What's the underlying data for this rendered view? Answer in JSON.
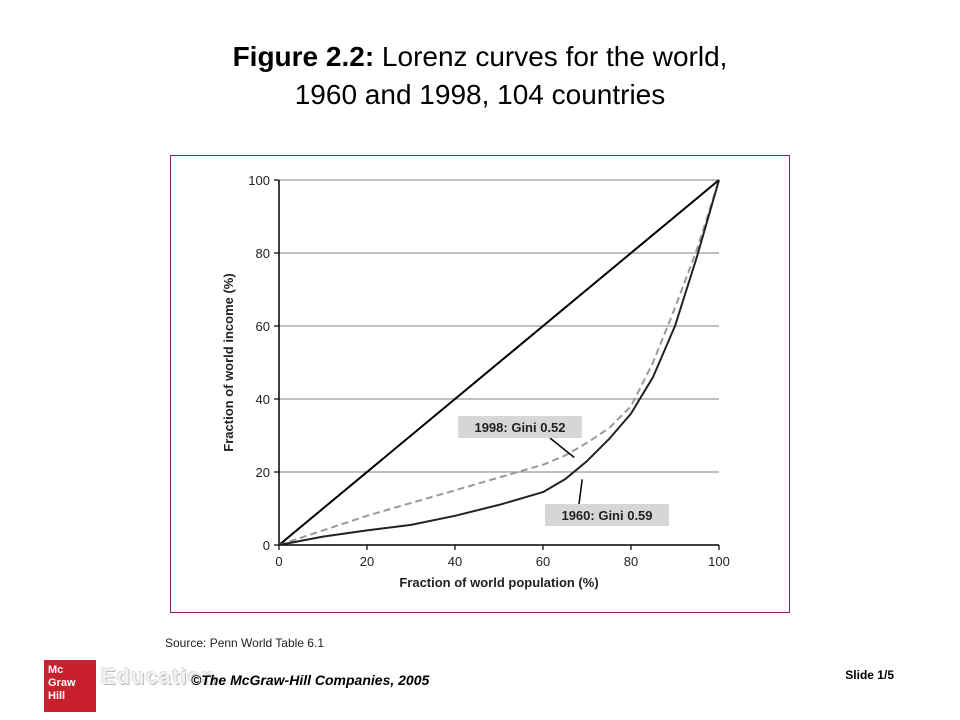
{
  "slide": {
    "title_bold": "Figure 2.2:",
    "title_rest": " Lorenz curves for the world,",
    "title_line2": "1960 and 1998, 104 countries",
    "source": "Source: Penn World Table 6.1",
    "copyright": "©The McGraw-Hill Companies, 2005",
    "slide_number": "Slide 1/5",
    "logo_text": [
      "Mc",
      "Graw",
      "Hill"
    ],
    "logo_word": "Education"
  },
  "colors": {
    "frame_border": "#8a1f5a",
    "line_equality": "#000000",
    "line_1960": "#222222",
    "line_1998": "#9a9a9a",
    "grid": "#9a9a9a",
    "label_bg": "#d6d6d6",
    "logo_red": "#c8202c"
  },
  "chart_data": {
    "type": "line",
    "xlabel": "Fraction of world population (%)",
    "ylabel": "Fraction of world income (%)",
    "xlim": [
      0,
      100
    ],
    "ylim": [
      0,
      100
    ],
    "xticks": [
      0,
      20,
      40,
      60,
      80,
      100
    ],
    "yticks": [
      0,
      20,
      40,
      60,
      80,
      100
    ],
    "grid": "horizontal",
    "series": [
      {
        "style": "solid",
        "x": [
          0,
          100
        ],
        "y": [
          0,
          100
        ]
      },
      {
        "name": "1998: Gini 0.52",
        "style": "dashed",
        "x": [
          0,
          10,
          20,
          30,
          40,
          50,
          60,
          65,
          70,
          75,
          80,
          85,
          90,
          95,
          100
        ],
        "y": [
          0,
          4,
          8,
          11.5,
          15,
          18.5,
          22,
          24.5,
          28,
          32,
          38,
          50,
          65,
          81,
          100
        ]
      },
      {
        "name": "1960: Gini 0.59",
        "style": "solid",
        "x": [
          0,
          10,
          20,
          30,
          40,
          50,
          60,
          65,
          70,
          75,
          80,
          85,
          90,
          95,
          100
        ],
        "y": [
          0,
          2.3,
          4,
          5.5,
          8,
          11,
          14.5,
          18,
          23,
          29,
          36,
          46,
          60,
          79,
          100
        ]
      }
    ],
    "annotations": [
      {
        "text": "1998: Gini 0.52",
        "x": 68,
        "y": 24
      },
      {
        "text": "1960: Gini 0.59",
        "x": 68,
        "y": 18
      }
    ]
  }
}
